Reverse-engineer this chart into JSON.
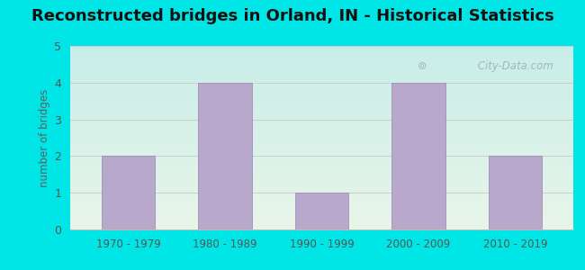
{
  "title": "Reconstructed bridges in Orland, IN - Historical Statistics",
  "categories": [
    "1970 - 1979",
    "1980 - 1989",
    "1990 - 1999",
    "2000 - 2009",
    "2010 - 2019"
  ],
  "values": [
    2,
    4,
    1,
    4,
    2
  ],
  "bar_color": "#b8a8cc",
  "bar_edge_color": "#9a82b4",
  "ylabel": "number of bridges",
  "ylim": [
    0,
    5
  ],
  "yticks": [
    0,
    1,
    2,
    3,
    4,
    5
  ],
  "background_outer": "#00e5e5",
  "bg_top": "#c8ede8",
  "bg_bottom": "#e8f5e8",
  "title_fontsize": 13,
  "ylabel_color": "#606060",
  "tick_label_color": "#555555",
  "grid_color": "#cccccc",
  "watermark_text": " City-Data.com",
  "watermark_color": "#a0b8b8",
  "bar_width": 0.55
}
